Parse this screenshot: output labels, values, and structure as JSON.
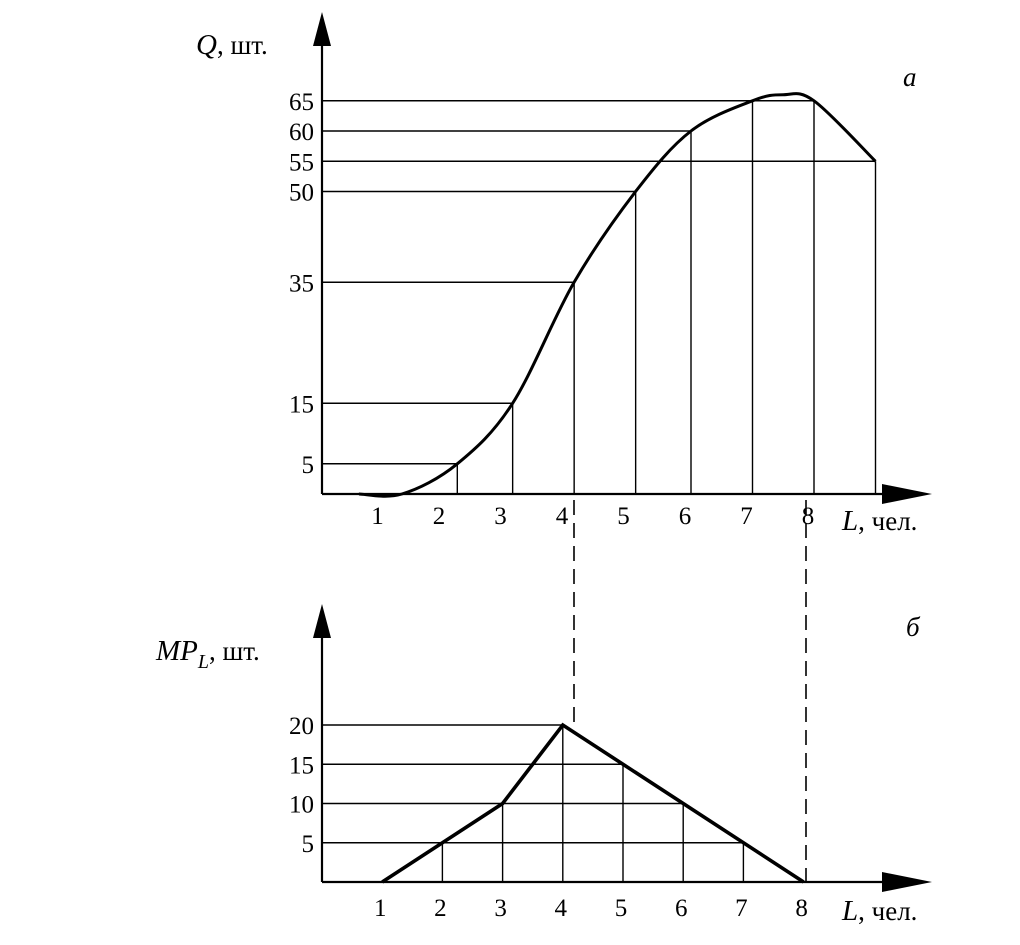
{
  "chart_data": [
    {
      "type": "line",
      "panel_label": "а",
      "y_var": "Q",
      "y_unit": ", шт.",
      "x_var": "L",
      "x_unit": ", чел.",
      "x_ticks": [
        "1",
        "2",
        "3",
        "4",
        "5",
        "6",
        "7",
        "8"
      ],
      "y_ticks": [
        "5",
        "15",
        "35",
        "50",
        "55",
        "60",
        "65"
      ],
      "series": [
        {
          "x": [
            1.3,
            2.2,
            3.1,
            4.1,
            5.1,
            6.0,
            7.0,
            7.5,
            8.0,
            9.0
          ],
          "y": [
            0,
            5,
            15,
            35,
            50,
            60,
            65,
            66,
            65,
            55
          ]
        }
      ],
      "reference_points": [
        {
          "x": 2.2,
          "y": 5
        },
        {
          "x": 3.1,
          "y": 15
        },
        {
          "x": 4.1,
          "y": 35
        },
        {
          "x": 5.1,
          "y": 50
        },
        {
          "x": 6.0,
          "y": 60
        },
        {
          "x": 7.0,
          "y": 65
        },
        {
          "x": 8.0,
          "y": 65
        },
        {
          "x": 9.0,
          "y": 55
        }
      ],
      "grid": "drop-lines"
    },
    {
      "type": "line",
      "panel_label": "б",
      "y_var": "MP",
      "y_sub": "L",
      "y_unit": ", шт.",
      "x_var": "L",
      "x_unit": ", чел.",
      "x_ticks": [
        "1",
        "2",
        "3",
        "4",
        "5",
        "6",
        "7",
        "8"
      ],
      "y_ticks": [
        "5",
        "10",
        "15",
        "20"
      ],
      "series": [
        {
          "x": [
            1,
            3,
            4,
            8
          ],
          "y": [
            0,
            10,
            20,
            0
          ]
        }
      ],
      "reference_points": [
        {
          "x": 2,
          "y": 5
        },
        {
          "x": 3,
          "y": 10
        },
        {
          "x": 4,
          "y": 20
        },
        {
          "x": 5,
          "y": 15
        },
        {
          "x": 6,
          "y": 10
        },
        {
          "x": 7,
          "y": 5
        }
      ],
      "grid": "drop-lines"
    }
  ]
}
